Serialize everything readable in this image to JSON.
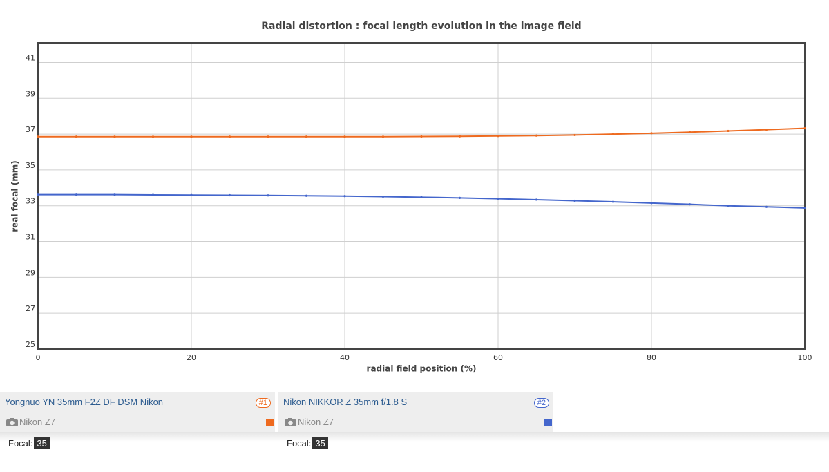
{
  "chart_data": {
    "type": "line",
    "title": "Radial distortion : focal length evolution in the image field",
    "x_label": "radial field position (%)",
    "y_label": "real focal (mm)",
    "x": [
      0,
      5,
      10,
      15,
      20,
      25,
      30,
      35,
      40,
      45,
      50,
      55,
      60,
      65,
      70,
      75,
      80,
      85,
      90,
      95,
      100
    ],
    "series": [
      {
        "name": "Yongnuo YN 35mm F2Z DF DSM Nikon",
        "color": "#ee6a1f",
        "tag": "#1",
        "camera": "Nikon Z7",
        "focal_label": "Focal:",
        "focal": 35,
        "values": [
          36.86,
          36.86,
          36.86,
          36.86,
          36.86,
          36.86,
          36.86,
          36.86,
          36.86,
          36.86,
          36.87,
          36.88,
          36.9,
          36.92,
          36.95,
          37.0,
          37.05,
          37.11,
          37.18,
          37.25,
          37.33
        ]
      },
      {
        "name": "Nikon NIKKOR Z 35mm f/1.8 S",
        "color": "#4466cc",
        "tag": "#2",
        "camera": "Nikon Z7",
        "focal_label": "Focal:",
        "focal": 35,
        "values": [
          33.62,
          33.62,
          33.62,
          33.61,
          33.6,
          33.59,
          33.58,
          33.56,
          33.54,
          33.51,
          33.48,
          33.44,
          33.39,
          33.34,
          33.28,
          33.22,
          33.15,
          33.08,
          33.0,
          32.94,
          32.88
        ]
      }
    ],
    "xlim": [
      0,
      100
    ],
    "xticks": [
      0,
      20,
      40,
      60,
      80,
      100
    ],
    "ylim": [
      25,
      42.1
    ],
    "yticks": [
      25,
      27,
      29,
      31,
      33,
      35,
      37,
      39,
      41
    ],
    "grid": true
  }
}
